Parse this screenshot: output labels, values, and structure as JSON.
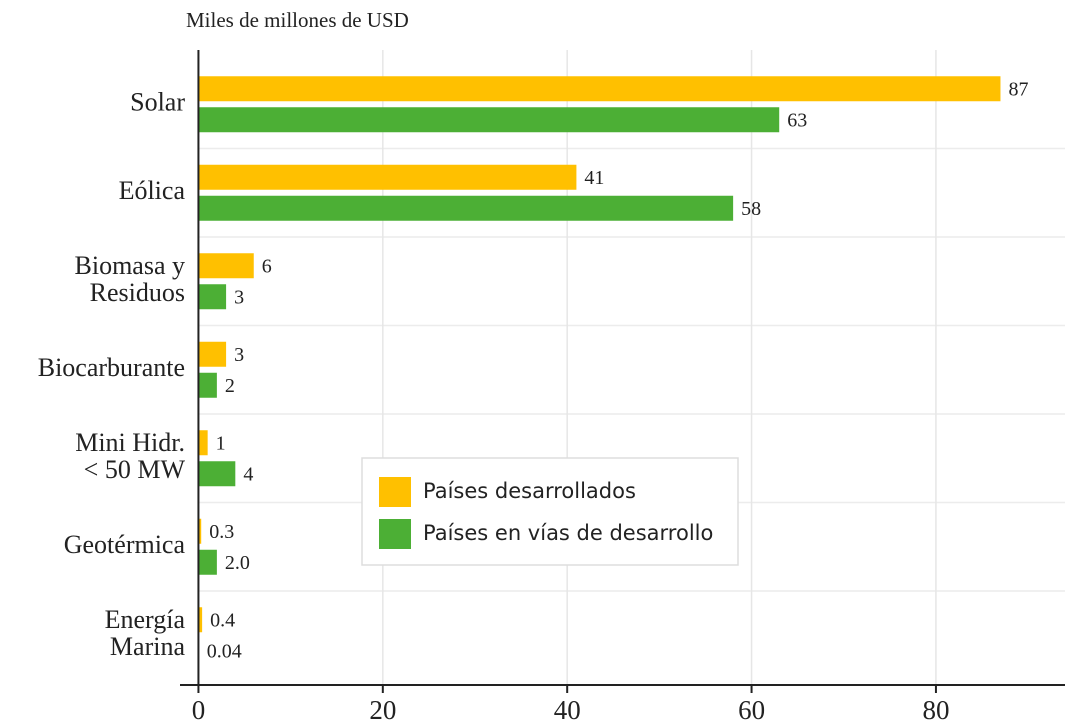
{
  "chart_data": {
    "type": "hbar",
    "subtitle": "Miles de millones de USD",
    "categories": [
      [
        "Solar"
      ],
      [
        "Eólica"
      ],
      [
        "Biomasa y",
        "Residuos"
      ],
      [
        "Biocarburante"
      ],
      [
        "Mini Hidr.",
        "< 50 MW"
      ],
      [
        "Geotérmica"
      ],
      [
        "Energía",
        "Marina"
      ]
    ],
    "series": [
      {
        "name": "Países desarrollados",
        "color": "#ffc000",
        "values": [
          87,
          41,
          6,
          3,
          1,
          0.3,
          0.4
        ],
        "value_labels": [
          "87",
          "41",
          "6",
          "3",
          "1",
          "0.3",
          "0.4"
        ]
      },
      {
        "name": "Países en vías de desarrollo",
        "color": "#4caf35",
        "values": [
          63,
          58,
          3,
          2,
          4,
          2,
          0.04
        ],
        "value_labels": [
          "63",
          "58",
          "3",
          "2",
          "4",
          "2.0",
          "0.04"
        ]
      }
    ],
    "xlim": [
      -2,
      94
    ],
    "xticks": [
      0,
      20,
      40,
      60,
      80
    ],
    "grid": true
  }
}
